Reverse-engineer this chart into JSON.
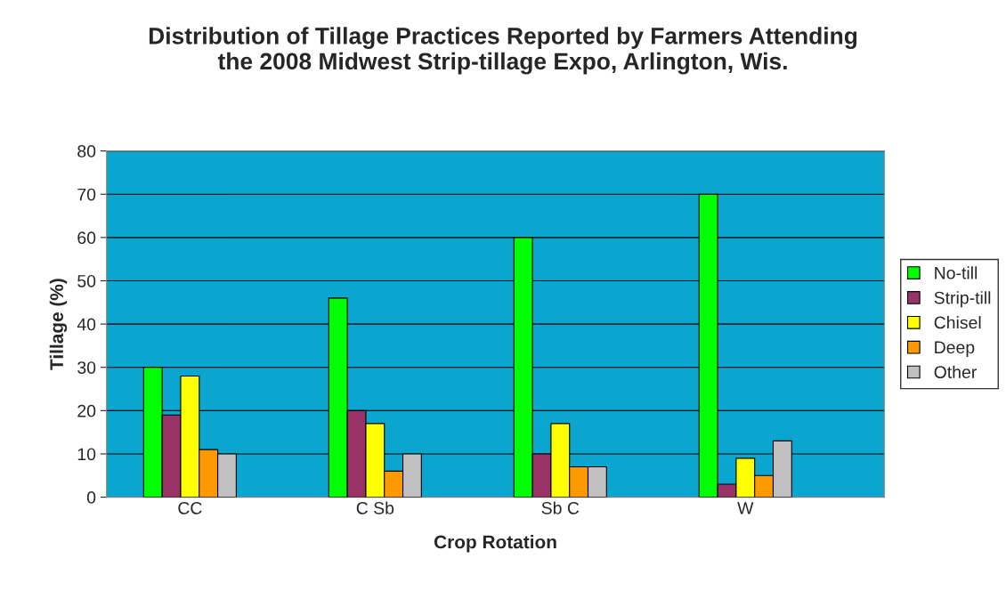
{
  "chart_data": {
    "type": "bar",
    "title": "Distribution of Tillage Practices Reported by Farmers Attending\nthe 2008 Midwest Strip-tillage Expo, Arlington, Wis.",
    "xlabel": "Crop Rotation",
    "ylabel": "Tillage (%)",
    "categories": [
      "CC",
      "C Sb",
      "Sb C",
      "W"
    ],
    "series": [
      {
        "name": "No-till",
        "color": "#00ff00",
        "values": [
          30,
          46,
          60,
          70
        ]
      },
      {
        "name": "Strip-till",
        "color": "#993366",
        "values": [
          19,
          20,
          10,
          3
        ]
      },
      {
        "name": "Chisel",
        "color": "#ffff00",
        "values": [
          28,
          17,
          17,
          9
        ]
      },
      {
        "name": "Deep",
        "color": "#ff9900",
        "values": [
          11,
          6,
          7,
          5
        ]
      },
      {
        "name": "Other",
        "color": "#c0c0c0",
        "values": [
          10,
          10,
          7,
          13
        ]
      }
    ],
    "ylim": [
      0,
      80
    ],
    "yticks": [
      0,
      10,
      20,
      30,
      40,
      50,
      60,
      70,
      80
    ],
    "grid": "y",
    "legend": "right"
  }
}
